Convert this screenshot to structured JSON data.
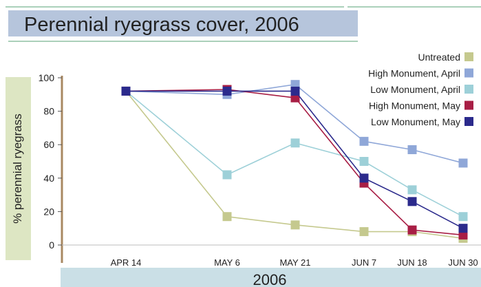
{
  "chart_data": {
    "type": "line",
    "title": "Perennial ryegrass cover, 2006",
    "xlabel": "2006",
    "ylabel": "% perennial ryegrass",
    "ylim": [
      0,
      100
    ],
    "yticks": [
      0,
      20,
      40,
      60,
      80,
      100
    ],
    "categories": [
      "APR 14",
      "MAY 6",
      "MAY 21",
      "JUN 7",
      "JUN 18",
      "JUN 30"
    ],
    "legend_position": "top-right",
    "series": [
      {
        "name": "Untreated",
        "color": "#c5c98e",
        "values": [
          92,
          17,
          12,
          8,
          8,
          4
        ]
      },
      {
        "name": "High Monument, April",
        "color": "#8fa7d8",
        "values": [
          92,
          90,
          96,
          62,
          57,
          49
        ]
      },
      {
        "name": "Low Monument, April",
        "color": "#9dd0d8",
        "values": [
          92,
          42,
          61,
          50,
          33,
          17
        ]
      },
      {
        "name": "High Monument, May",
        "color": "#a81e45",
        "values": [
          92,
          93,
          88,
          37,
          9,
          6
        ]
      },
      {
        "name": "Low Monument, May",
        "color": "#2b2a8c",
        "values": [
          92,
          92,
          92,
          40,
          26,
          10
        ]
      }
    ]
  }
}
